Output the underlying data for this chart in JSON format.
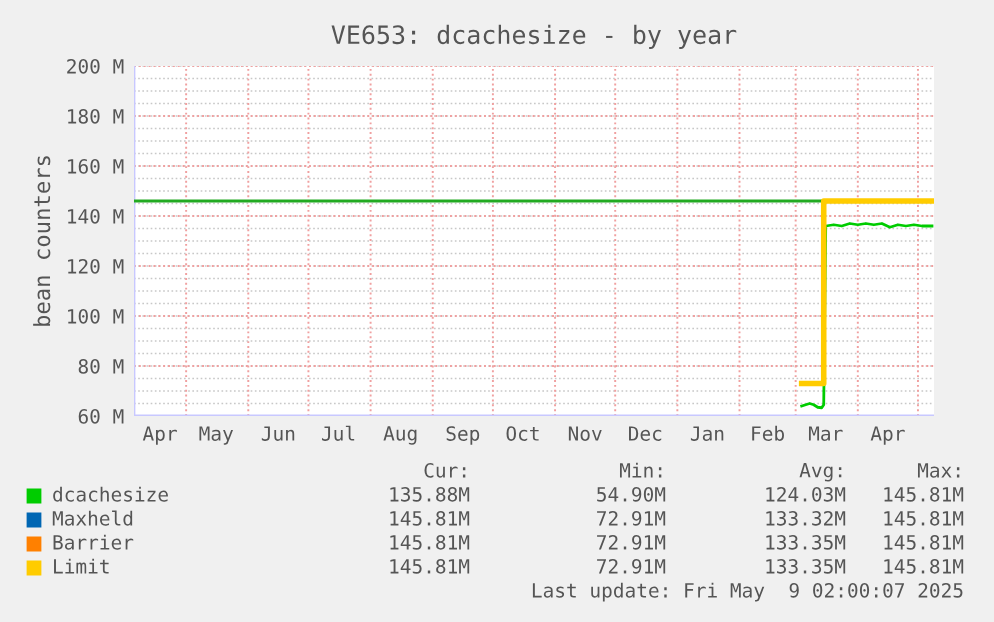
{
  "chart_data": {
    "type": "line",
    "title": "VE653: dcachesize - by year",
    "ylabel": "bean counters",
    "xlim": [
      "2024-04-05",
      "2025-05-09"
    ],
    "xticks": [
      {
        "value": "2024-04-18",
        "label": "Apr"
      },
      {
        "value": "2024-05-16",
        "label": "May"
      },
      {
        "value": "2024-06-16",
        "label": "Jun"
      },
      {
        "value": "2024-07-16",
        "label": "Jul"
      },
      {
        "value": "2024-08-16",
        "label": "Aug"
      },
      {
        "value": "2024-09-16",
        "label": "Sep"
      },
      {
        "value": "2024-10-16",
        "label": "Oct"
      },
      {
        "value": "2024-11-16",
        "label": "Nov"
      },
      {
        "value": "2024-12-16",
        "label": "Dec"
      },
      {
        "value": "2025-01-16",
        "label": "Jan"
      },
      {
        "value": "2025-02-15",
        "label": "Feb"
      },
      {
        "value": "2025-03-16",
        "label": "Mar"
      },
      {
        "value": "2025-04-16",
        "label": "Apr"
      },
      {
        "value": "2024-05-01",
        "label": null
      },
      {
        "value": "2024-06-01",
        "label": null
      },
      {
        "value": "2024-07-01",
        "label": null
      },
      {
        "value": "2024-08-01",
        "label": null
      },
      {
        "value": "2024-09-01",
        "label": null
      },
      {
        "value": "2024-10-01",
        "label": null
      },
      {
        "value": "2024-11-01",
        "label": null
      },
      {
        "value": "2024-12-01",
        "label": null
      },
      {
        "value": "2025-01-01",
        "label": null
      },
      {
        "value": "2025-02-01",
        "label": null
      },
      {
        "value": "2025-03-01",
        "label": null
      },
      {
        "value": "2025-04-01",
        "label": null
      },
      {
        "value": "2025-05-01",
        "label": null
      }
    ],
    "ylim": [
      60,
      200
    ],
    "yticks": [
      {
        "value": 60,
        "label": "60 M"
      },
      {
        "value": 80,
        "label": "80 M"
      },
      {
        "value": 100,
        "label": "100 M"
      },
      {
        "value": 120,
        "label": "120 M"
      },
      {
        "value": 140,
        "label": "140 M"
      },
      {
        "value": 160,
        "label": "160 M"
      },
      {
        "value": 180,
        "label": "180 M"
      },
      {
        "value": 200,
        "label": "200 M"
      }
    ],
    "grid": true,
    "legend": "bottom",
    "marker": "none",
    "line_style": "solid",
    "ref_lines": [
      {
        "axis": "y",
        "value": 146,
        "color": "#22aa22"
      }
    ],
    "series": [
      {
        "name": "dcachesize",
        "color": "#00cc00",
        "x": [
          "2025-03-04",
          "2025-03-06",
          "2025-03-08",
          "2025-03-10",
          "2025-03-12",
          "2025-03-14",
          "2025-03-15",
          "2025-03-16",
          "2025-03-20",
          "2025-03-24",
          "2025-03-28",
          "2025-04-01",
          "2025-04-05",
          "2025-04-09",
          "2025-04-13",
          "2025-04-17",
          "2025-04-21",
          "2025-04-25",
          "2025-04-29",
          "2025-05-03",
          "2025-05-08"
        ],
        "values": [
          64,
          64.5,
          65,
          64.5,
          63.5,
          63.3,
          64.5,
          136,
          136.5,
          136,
          137,
          136.5,
          137,
          136.5,
          137,
          135.5,
          136.5,
          136,
          136.5,
          136,
          136
        ]
      },
      {
        "name": "Maxheld",
        "color": "#0066b3"
      },
      {
        "name": "Barrier",
        "color": "#ff8000"
      },
      {
        "name": "Limit",
        "color": "#ffcc00",
        "x": [
          "2025-03-04",
          "2025-03-15",
          "2025-03-15",
          "2025-05-09"
        ],
        "values": [
          73,
          73,
          146,
          146
        ]
      }
    ],
    "annotations": [
      "Cur:",
      "Min:",
      "Avg:",
      "Max:",
      "135.88M",
      "54.90M",
      "124.03M",
      "145.81M",
      "145.81M",
      "72.91M",
      "133.32M",
      "145.81M",
      "145.81M",
      "72.91M",
      "133.35M",
      "145.81M",
      "145.81M",
      "72.91M",
      "133.35M",
      "145.81M",
      "Last update: Fri May  9 02:00:07 2025"
    ]
  }
}
